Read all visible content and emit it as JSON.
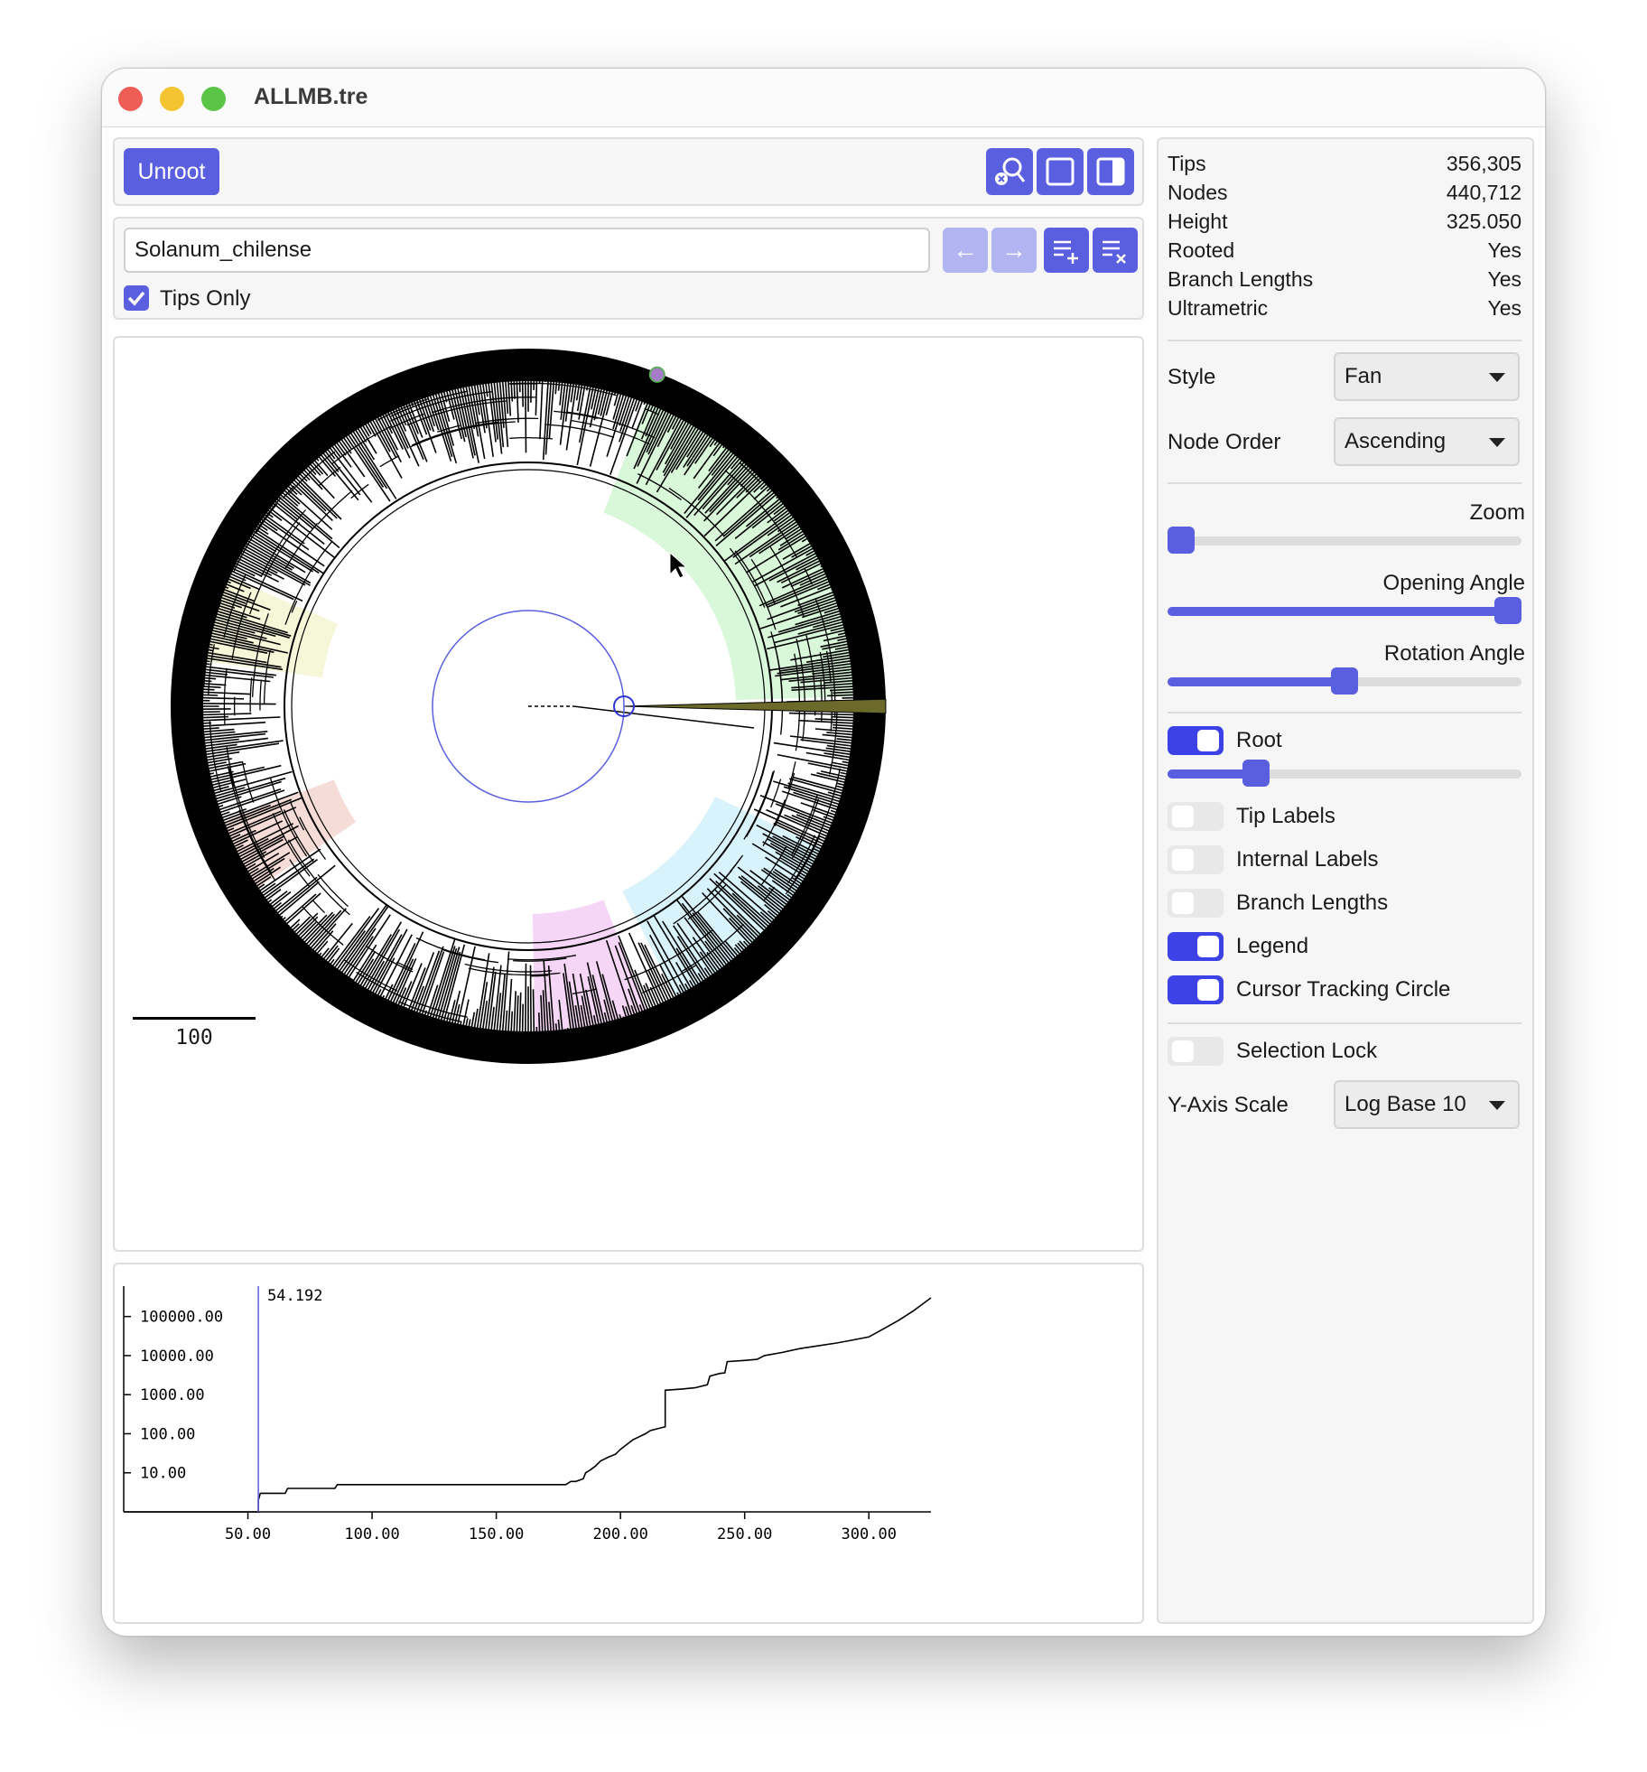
{
  "window": {
    "title": "ALLMB.tre",
    "traffic_colors": [
      "#ee5d56",
      "#f4c530",
      "#5ac546"
    ]
  },
  "toolbar": {
    "unroot_label": "Unroot",
    "icons": [
      "zoom-to-selection-icon",
      "square-view-icon",
      "sidebar-toggle-icon"
    ]
  },
  "search": {
    "value": "Solanum_chilense",
    "prev_label": "←",
    "next_label": "→",
    "add_selection_icon": "list-add-icon",
    "clear_selection_icon": "list-clear-icon",
    "tips_only_label": "Tips Only",
    "tips_only_checked": true
  },
  "tree": {
    "scale_bar_label": "100",
    "accent_color": "#5a5fe0"
  },
  "chart_data": {
    "type": "line",
    "x_ticks": [
      "50.00",
      "100.00",
      "150.00",
      "200.00",
      "250.00",
      "300.00"
    ],
    "y_ticks": [
      "100000.00",
      "10000.00",
      "1000.00",
      "100.00",
      "10.00"
    ],
    "y_scale": "log10",
    "xlim": [
      0,
      325
    ],
    "ylim": [
      1,
      600000
    ],
    "cursor_label": "54.192",
    "cursor_x": 54.192,
    "series": [
      {
        "values": [
          [
            0,
            1
          ],
          [
            54.192,
            1
          ],
          [
            54.192,
            2
          ],
          [
            55,
            3
          ],
          [
            65,
            3
          ],
          [
            66,
            4
          ],
          [
            85,
            4
          ],
          [
            86,
            5
          ],
          [
            120,
            5
          ],
          [
            150,
            5
          ],
          [
            178,
            5
          ],
          [
            180,
            6
          ],
          [
            182,
            6
          ],
          [
            185,
            7
          ],
          [
            186,
            10
          ],
          [
            188,
            12
          ],
          [
            190,
            15
          ],
          [
            192,
            20
          ],
          [
            195,
            25
          ],
          [
            198,
            30
          ],
          [
            200,
            40
          ],
          [
            202,
            50
          ],
          [
            205,
            70
          ],
          [
            210,
            100
          ],
          [
            212,
            120
          ],
          [
            216,
            140
          ],
          [
            218,
            150
          ],
          [
            218,
            1300
          ],
          [
            225,
            1400
          ],
          [
            230,
            1500
          ],
          [
            235,
            1800
          ],
          [
            236,
            3000
          ],
          [
            240,
            3500
          ],
          [
            242,
            3600
          ],
          [
            243,
            7000
          ],
          [
            250,
            7500
          ],
          [
            255,
            8000
          ],
          [
            258,
            10000
          ],
          [
            265,
            12000
          ],
          [
            272,
            15000
          ],
          [
            280,
            18000
          ],
          [
            287,
            21000
          ],
          [
            292,
            24000
          ],
          [
            300,
            30000
          ],
          [
            305,
            45000
          ],
          [
            312,
            80000
          ],
          [
            318,
            140000
          ],
          [
            325,
            300000
          ]
        ]
      }
    ]
  },
  "stats": [
    {
      "key": "Tips",
      "value": "356,305"
    },
    {
      "key": "Nodes",
      "value": "440,712"
    },
    {
      "key": "Height",
      "value": "325.050"
    },
    {
      "key": "Rooted",
      "value": "Yes"
    },
    {
      "key": "Branch Lengths",
      "value": "Yes"
    },
    {
      "key": "Ultrametric",
      "value": "Yes"
    }
  ],
  "settings": {
    "style_label": "Style",
    "style_value": "Fan",
    "node_order_label": "Node Order",
    "node_order_value": "Ascending",
    "zoom_label": "Zoom",
    "zoom_value": 0.0,
    "opening_angle_label": "Opening Angle",
    "opening_angle_value": 1.0,
    "rotation_angle_label": "Rotation Angle",
    "rotation_angle_value": 0.5,
    "root_label": "Root",
    "root_on": true,
    "root_value": 0.23,
    "tip_labels_label": "Tip Labels",
    "tip_labels_on": false,
    "internal_labels_label": "Internal Labels",
    "internal_labels_on": false,
    "branch_lengths_label": "Branch Lengths",
    "branch_lengths_on": false,
    "legend_label": "Legend",
    "legend_on": true,
    "cursor_circle_label": "Cursor Tracking Circle",
    "cursor_circle_on": true,
    "selection_lock_label": "Selection Lock",
    "selection_lock_on": false,
    "y_axis_scale_label": "Y-Axis Scale",
    "y_axis_scale_value": "Log Base 10"
  }
}
